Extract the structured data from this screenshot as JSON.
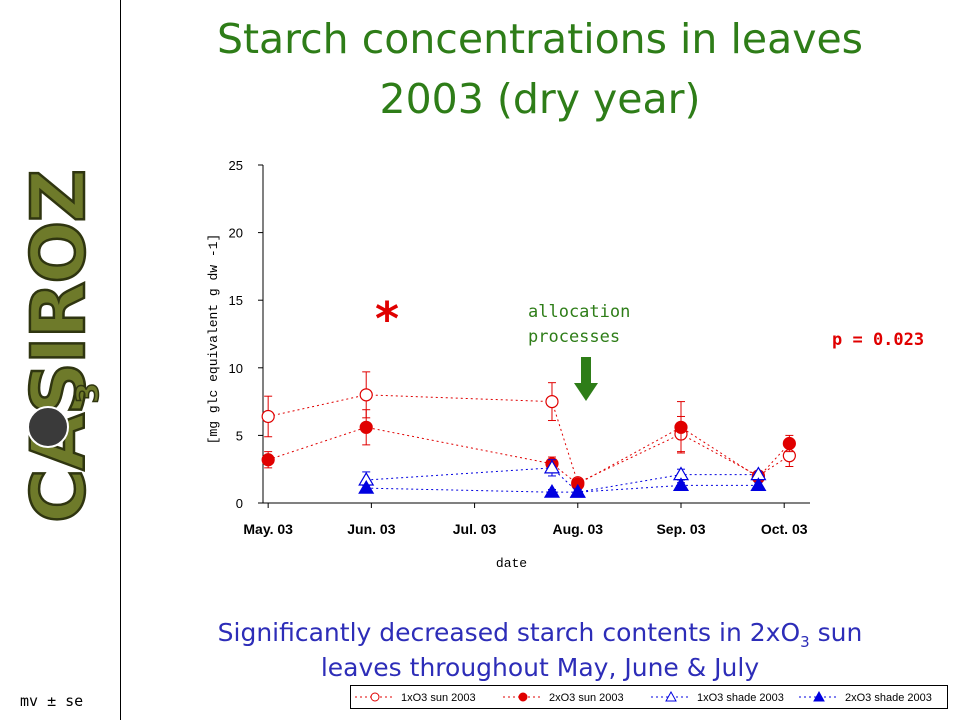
{
  "title": {
    "line1": "Starch concentrations in leaves",
    "line2": "2003 (dry year)"
  },
  "annotations": {
    "allocation_line1": "allocation",
    "allocation_line2": "processes",
    "p_value": "p = 0.023",
    "significance_marker": "*"
  },
  "conclusion": {
    "line1_pre": "Significantly decreased starch contents in 2xO",
    "line1_sub": "3",
    "line1_post": " sun",
    "line2": "leaves throughout May, June & July"
  },
  "footnote": "mv ± se",
  "logo": {
    "text": "CASIROZ",
    "subscript": "3"
  },
  "colors": {
    "title": "#2e7d18",
    "conclusion": "#2d2db8",
    "red_series": "#e00000",
    "blue_series": "#0000e0",
    "annotation": "#2e7d18"
  },
  "chart_data": {
    "type": "line",
    "xlabel": "date",
    "ylabel": "[mg glc equivalent g dw -1]",
    "ylim": [
      0,
      25
    ],
    "yticks": [
      0,
      5,
      10,
      15,
      20,
      25
    ],
    "xticks": [
      "May. 03",
      "Jun. 03",
      "Jul. 03",
      "Aug. 03",
      "Sep. 03",
      "Oct. 03"
    ],
    "xtick_months": [
      0,
      1,
      2,
      3,
      4,
      5
    ],
    "series": [
      {
        "name": "1xO3 sun 2003",
        "color": "#e00000",
        "marker": "circle-open",
        "x": [
          0,
          0.95,
          2.75,
          3.0,
          4.0,
          4.75,
          5.05
        ],
        "y": [
          6.4,
          8.0,
          7.5,
          1.5,
          5.1,
          2.0,
          3.5
        ],
        "err": [
          1.5,
          1.7,
          1.4,
          0.3,
          1.3,
          0.3,
          0.8
        ]
      },
      {
        "name": "2xO3 sun 2003",
        "color": "#e00000",
        "marker": "circle-filled",
        "x": [
          0,
          0.95,
          2.75,
          3.0,
          4.0,
          4.75,
          5.05
        ],
        "y": [
          3.2,
          5.6,
          2.9,
          1.4,
          5.6,
          1.9,
          4.4
        ],
        "err": [
          0.6,
          1.3,
          0.5,
          0.3,
          1.9,
          0.3,
          0.6
        ]
      },
      {
        "name": "1xO3 shade 2003",
        "color": "#0000e0",
        "marker": "triangle-open",
        "x": [
          0.95,
          2.75,
          3.0,
          4.0,
          4.75
        ],
        "y": [
          1.7,
          2.6,
          0.8,
          2.1,
          2.1
        ],
        "err": [
          0.6,
          0.6,
          0.2,
          0.4,
          0.2
        ]
      },
      {
        "name": "2xO3 shade 2003",
        "color": "#0000e0",
        "marker": "triangle-filled",
        "x": [
          0.95,
          2.75,
          3.0,
          4.0,
          4.75
        ],
        "y": [
          1.1,
          0.8,
          0.8,
          1.3,
          1.3
        ],
        "err": [
          0.2,
          0.2,
          0.1,
          0.2,
          0.2
        ]
      }
    ]
  }
}
